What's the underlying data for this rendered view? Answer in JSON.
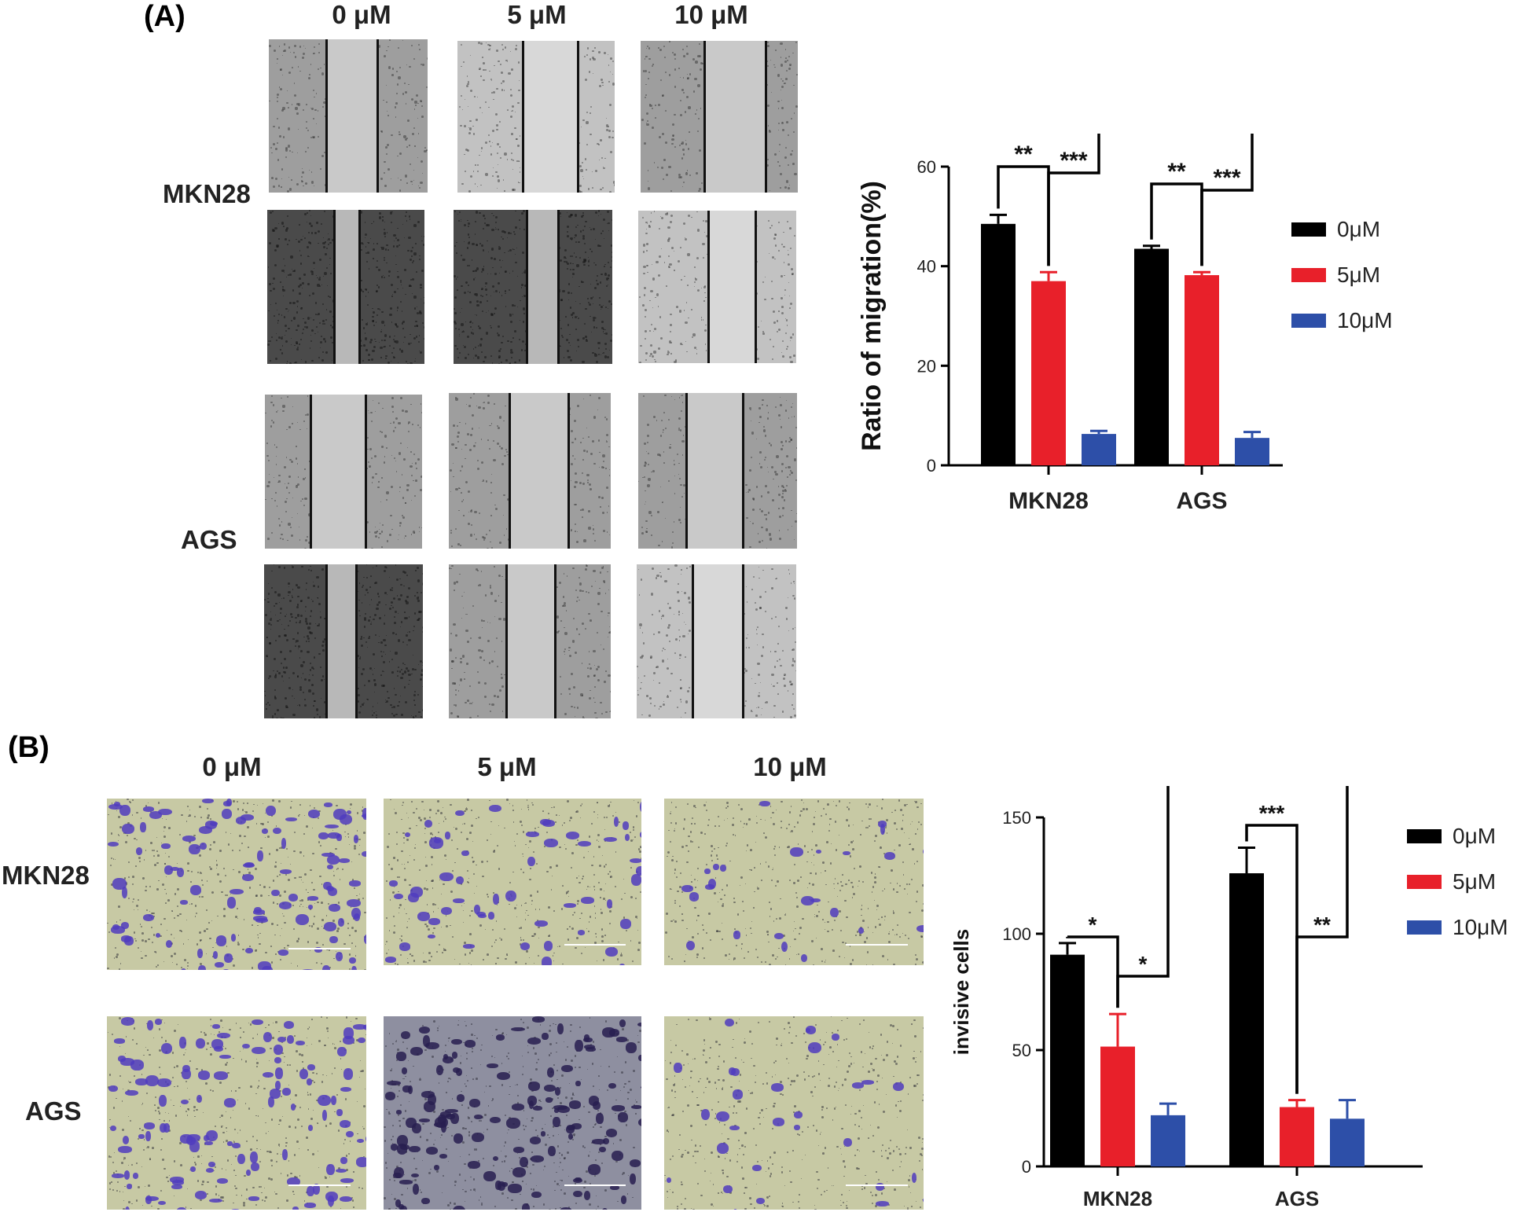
{
  "panels": {
    "a_label": "(A)",
    "b_label": "(B)"
  },
  "panel_a": {
    "columns": [
      "0 μM",
      "5 μM",
      "10 μM"
    ],
    "rows": [
      "MKN28",
      "AGS"
    ]
  },
  "panel_b": {
    "columns": [
      "0 μM",
      "5 μM",
      "10 μM"
    ],
    "rows": [
      "MKN28",
      "AGS"
    ]
  },
  "chart_data": [
    {
      "type": "bar",
      "ylabel": "Ratio of migration(%)",
      "categories": [
        "MKN28",
        "AGS"
      ],
      "ylim": [
        0,
        60
      ],
      "yticks": [
        "0",
        "20",
        "40",
        "60"
      ],
      "series": [
        {
          "name": "0μM",
          "color": "#000000",
          "values": [
            48.5,
            43.5
          ],
          "errors": [
            1.8,
            0.6
          ]
        },
        {
          "name": "5μM",
          "color": "#e8202a",
          "values": [
            37,
            38.2
          ],
          "errors": [
            1.8,
            0.6
          ]
        },
        {
          "name": "10μM",
          "color": "#2d4fa8",
          "values": [
            6.3,
            5.5
          ],
          "errors": [
            0.6,
            1.2
          ]
        }
      ],
      "significance": [
        {
          "group": 0,
          "from": 0,
          "to": 1,
          "label": "**"
        },
        {
          "group": 0,
          "from": 1,
          "to": 2,
          "label": "***"
        },
        {
          "group": 1,
          "from": 0,
          "to": 1,
          "label": "**"
        },
        {
          "group": 1,
          "from": 1,
          "to": 2,
          "label": "***"
        }
      ],
      "legend": "right"
    },
    {
      "type": "bar",
      "ylabel": "invisive cells",
      "categories": [
        "MKN28",
        "AGS"
      ],
      "ylim": [
        0,
        150
      ],
      "yticks": [
        "0",
        "50",
        "100",
        "150"
      ],
      "series": [
        {
          "name": "0μM",
          "color": "#000000",
          "values": [
            91,
            126
          ],
          "errors": [
            5,
            11
          ]
        },
        {
          "name": "5μM",
          "color": "#e8202a",
          "values": [
            51.5,
            25.5
          ],
          "errors": [
            14,
            3
          ]
        },
        {
          "name": "10μM",
          "color": "#2d4fa8",
          "values": [
            22,
            20.5
          ],
          "errors": [
            5,
            8
          ]
        }
      ],
      "significance": [
        {
          "group": 0,
          "from": 0,
          "to": 1,
          "label": "*"
        },
        {
          "group": 0,
          "from": 1,
          "to": 2,
          "label": "*"
        },
        {
          "group": 1,
          "from": 0,
          "to": 1,
          "label": "***"
        },
        {
          "group": 1,
          "from": 1,
          "to": 2,
          "label": "**"
        }
      ],
      "legend": "right"
    }
  ]
}
